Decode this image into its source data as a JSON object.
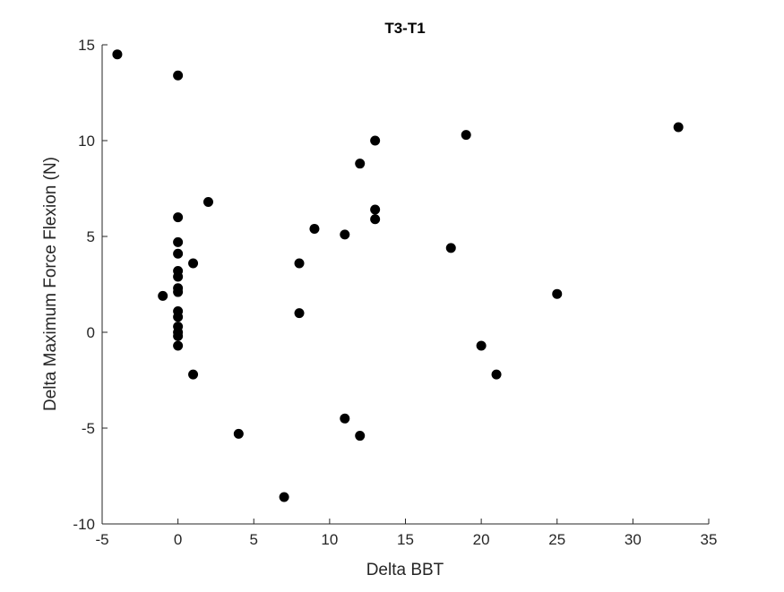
{
  "chart_data": {
    "type": "scatter",
    "title": "T3-T1",
    "xlabel": "Delta BBT",
    "ylabel": "Delta Maximum Force Flexion (N)",
    "xlim": [
      -5,
      35
    ],
    "ylim": [
      -10,
      15
    ],
    "xticks": [
      -5,
      0,
      5,
      10,
      15,
      20,
      25,
      30,
      35
    ],
    "yticks": [
      -10,
      -5,
      0,
      5,
      10,
      15
    ],
    "xtick_labels": [
      "-5",
      "0",
      "5",
      "10",
      "15",
      "20",
      "25",
      "30",
      "35"
    ],
    "ytick_labels": [
      "-10",
      "-5",
      "0",
      "5",
      "10",
      "15"
    ],
    "grid": false,
    "marker_color": "#000000",
    "points": [
      {
        "x": -4,
        "y": 14.5
      },
      {
        "x": 0,
        "y": 13.4
      },
      {
        "x": -1,
        "y": 1.9
      },
      {
        "x": 0,
        "y": 6.0
      },
      {
        "x": 0,
        "y": 4.7
      },
      {
        "x": 0,
        "y": 4.1
      },
      {
        "x": 0,
        "y": 3.2
      },
      {
        "x": 0,
        "y": 2.9
      },
      {
        "x": 0,
        "y": 2.3
      },
      {
        "x": 0,
        "y": 2.1
      },
      {
        "x": 0,
        "y": 1.1
      },
      {
        "x": 0,
        "y": 0.8
      },
      {
        "x": 0,
        "y": 0.3
      },
      {
        "x": 0,
        "y": 0.0
      },
      {
        "x": 0,
        "y": -0.2
      },
      {
        "x": 0,
        "y": -0.7
      },
      {
        "x": 1,
        "y": 3.6
      },
      {
        "x": 1,
        "y": -2.2
      },
      {
        "x": 2,
        "y": 6.8
      },
      {
        "x": 4,
        "y": -5.3
      },
      {
        "x": 7,
        "y": -8.6
      },
      {
        "x": 8,
        "y": 3.6
      },
      {
        "x": 8,
        "y": 1.0
      },
      {
        "x": 9,
        "y": 5.4
      },
      {
        "x": 11,
        "y": 5.1
      },
      {
        "x": 11,
        "y": -4.5
      },
      {
        "x": 12,
        "y": 8.8
      },
      {
        "x": 12,
        "y": -5.4
      },
      {
        "x": 13,
        "y": 10.0
      },
      {
        "x": 13,
        "y": 6.4
      },
      {
        "x": 13,
        "y": 5.9
      },
      {
        "x": 18,
        "y": 4.4
      },
      {
        "x": 19,
        "y": 10.3
      },
      {
        "x": 20,
        "y": -0.7
      },
      {
        "x": 21,
        "y": -2.2
      },
      {
        "x": 25,
        "y": 2.0
      },
      {
        "x": 33,
        "y": 10.7
      }
    ]
  }
}
